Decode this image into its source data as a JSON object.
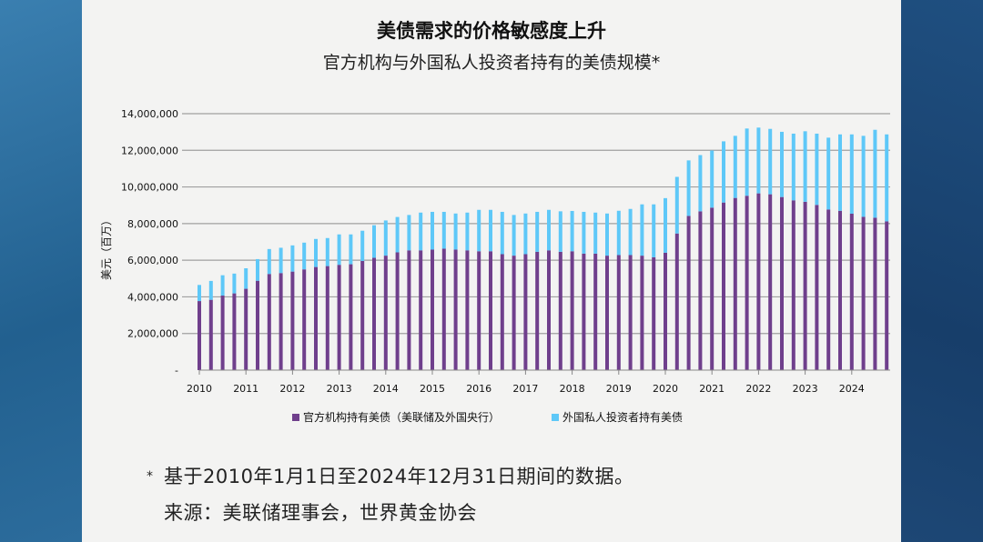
{
  "title": "美债需求的价格敏感度上升",
  "subtitle": "官方机构与外国私人投资者持有的美债规模*",
  "footnote": {
    "star": "*",
    "line1": "基于2010年1月1日至2024年12月31日期间的数据。",
    "line2": "来源：美联储理事会，世界黄金协会"
  },
  "colors": {
    "official": "#6f3f8c",
    "private": "#5ec8f8"
  },
  "chart_data": {
    "type": "bar",
    "stacked": true,
    "title": "美债需求的价格敏感度上升",
    "subtitle": "官方机构与外国私人投资者持有的美债规模*",
    "ylabel": "美元（百万）",
    "xlabel": "",
    "ylim": [
      0,
      14000000
    ],
    "yticks": [
      "-",
      "2,000,000",
      "4,000,000",
      "6,000,000",
      "8,000,000",
      "10,000,000",
      "12,000,000",
      "14,000,000"
    ],
    "xticks": [
      "2010",
      "2011",
      "2012",
      "2013",
      "2014",
      "2015",
      "2016",
      "2017",
      "2018",
      "2019",
      "2020",
      "2021",
      "2022",
      "2023",
      "2024"
    ],
    "grid": true,
    "legend_position": "bottom",
    "frequency": "quarterly, 2010Q1-2024Q4",
    "series": [
      {
        "name": "官方机构持有美债（美联储及外国央行）",
        "values": [
          3770000,
          3840000,
          4070000,
          4190000,
          4440000,
          4880000,
          5250000,
          5300000,
          5380000,
          5500000,
          5630000,
          5680000,
          5750000,
          5780000,
          5960000,
          6130000,
          6250000,
          6430000,
          6540000,
          6540000,
          6580000,
          6630000,
          6580000,
          6540000,
          6490000,
          6490000,
          6330000,
          6250000,
          6330000,
          6460000,
          6540000,
          6460000,
          6490000,
          6360000,
          6360000,
          6250000,
          6280000,
          6280000,
          6250000,
          6160000,
          6410000,
          7460000,
          8420000,
          8670000,
          8870000,
          9150000,
          9400000,
          9520000,
          9650000,
          9600000,
          9450000,
          9270000,
          9190000,
          9020000,
          8770000,
          8700000,
          8540000,
          8370000,
          8320000,
          8120000
        ]
      },
      {
        "name": "外国私人投资者持有美债",
        "values": [
          880000,
          1030000,
          1110000,
          1080000,
          1120000,
          1180000,
          1360000,
          1380000,
          1430000,
          1460000,
          1530000,
          1530000,
          1660000,
          1630000,
          1650000,
          1780000,
          1920000,
          1930000,
          1930000,
          2060000,
          2060000,
          2010000,
          1970000,
          2060000,
          2260000,
          2260000,
          2310000,
          2220000,
          2220000,
          2180000,
          2210000,
          2210000,
          2200000,
          2280000,
          2240000,
          2300000,
          2420000,
          2520000,
          2800000,
          2890000,
          2980000,
          3090000,
          3030000,
          3070000,
          3120000,
          3340000,
          3390000,
          3670000,
          3590000,
          3570000,
          3560000,
          3640000,
          3850000,
          3890000,
          3920000,
          4170000,
          4330000,
          4420000,
          4800000,
          4750000
        ]
      }
    ]
  }
}
